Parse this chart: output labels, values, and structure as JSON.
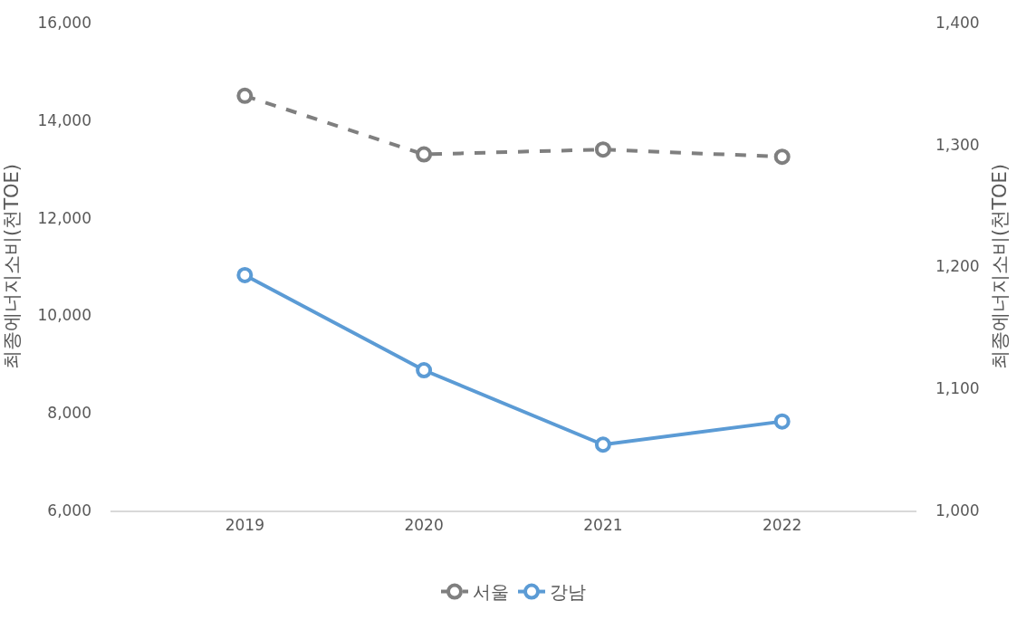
{
  "chart_data": {
    "type": "line",
    "categories": [
      "2019",
      "2020",
      "2021",
      "2022"
    ],
    "series": [
      {
        "name": "서울",
        "color": "#7f7f7f",
        "values": [
          14500,
          13300,
          13400,
          13250
        ],
        "line_style": "dashed"
      },
      {
        "name": "강남",
        "color": "#5b9bd5",
        "values": [
          1193,
          1115,
          1054,
          1073
        ],
        "axis": "y2",
        "line_style": "solid"
      }
    ],
    "ylabel": "최종에너지소비(천TOE)",
    "y2label": "최종에너지소비(천TOE)",
    "ylim": [
      6000,
      16000
    ],
    "yticks": [
      {
        "value": 6000,
        "label": "6,000"
      },
      {
        "value": 8000,
        "label": "8,000"
      },
      {
        "value": 10000,
        "label": "10,000"
      },
      {
        "value": 12000,
        "label": "12,000"
      },
      {
        "value": 14000,
        "label": "14,000"
      },
      {
        "value": 16000,
        "label": "16,000"
      }
    ],
    "y2lim": [
      1000,
      1400
    ],
    "y2ticks": [
      {
        "value": 1000,
        "label": "1,000"
      },
      {
        "value": 1100,
        "label": "1,100"
      },
      {
        "value": 1200,
        "label": "1,200"
      },
      {
        "value": 1300,
        "label": "1,300"
      },
      {
        "value": 1400,
        "label": "1,400"
      }
    ],
    "marker": "circle",
    "legend": "bottom"
  }
}
